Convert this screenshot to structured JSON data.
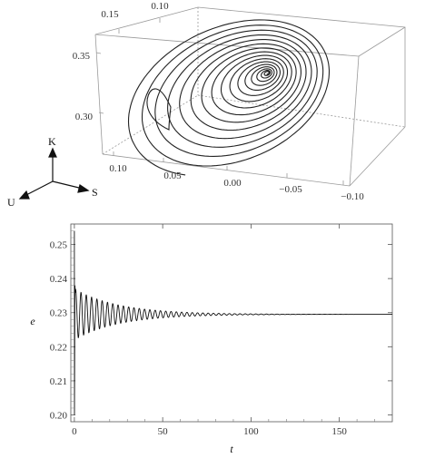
{
  "chart_data": [
    {
      "type": "line3d",
      "title": "",
      "axis_a_ticks": [
        "0.15",
        "0.10"
      ],
      "axis_z_ticks": [
        "0.35",
        "0.30"
      ],
      "axis_b_ticks": [
        "0.10",
        "0.05",
        "0.00",
        "−0.05",
        "−0.10"
      ],
      "triad_labels": {
        "up": "K",
        "left": "U",
        "right": "S"
      },
      "description_series": {
        "spiral_turns": 16,
        "converges_to_fixed_point": true
      }
    },
    {
      "type": "line",
      "title": "",
      "xlabel": "t",
      "ylabel": "e",
      "xlim": [
        -2,
        180
      ],
      "ylim": [
        0.198,
        0.256
      ],
      "x_ticks": [
        0,
        50,
        100,
        150
      ],
      "x_tick_labels": [
        "0",
        "50",
        "100",
        "150"
      ],
      "y_ticks": [
        0.2,
        0.21,
        0.22,
        0.23,
        0.24,
        0.25
      ],
      "y_tick_labels": [
        "0.20",
        "0.21",
        "0.22",
        "0.23",
        "0.24",
        "0.25"
      ],
      "series": [
        {
          "equilibrium": 0.2295,
          "initial_spike_max": 0.254,
          "initial_spike_min": 0.2,
          "oscillation_amplitude_start": 0.0075,
          "oscillation_period": 3.0,
          "decay_time": 25,
          "t_end": 180
        }
      ],
      "grid": false
    }
  ]
}
